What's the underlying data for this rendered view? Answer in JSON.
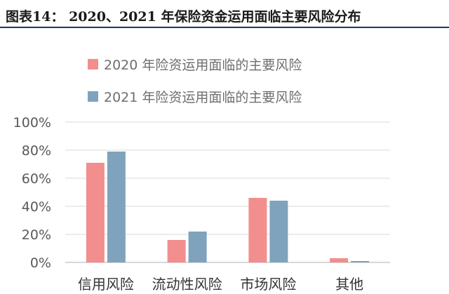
{
  "figure": {
    "label": "图表14：",
    "title": "2020、2021 年保险资金运用面临主要风险分布"
  },
  "chart_data": {
    "type": "bar",
    "categories": [
      "信用风险",
      "流动性风险",
      "市场风险",
      "其他"
    ],
    "series": [
      {
        "name": "2020 年险资运用面临的主要风险",
        "color": "#f28e8e",
        "values": [
          71,
          16,
          46,
          3
        ]
      },
      {
        "name": "2021 年险资运用面临的主要风险",
        "color": "#7fa3bd",
        "values": [
          79,
          22,
          44,
          1
        ]
      }
    ],
    "y_ticks": [
      "0%",
      "20%",
      "40%",
      "60%",
      "80%",
      "100%"
    ],
    "ylim": [
      0,
      100
    ],
    "grid": true,
    "legend_position": "top-center",
    "xlabel": "",
    "ylabel": ""
  }
}
